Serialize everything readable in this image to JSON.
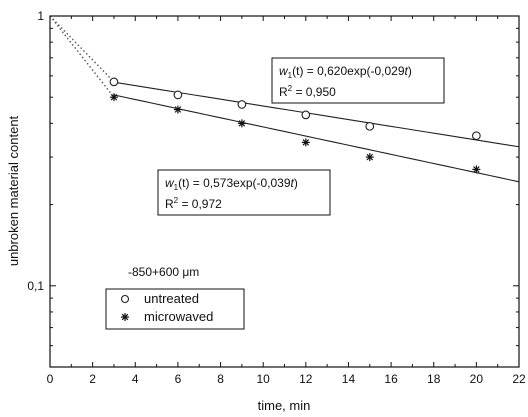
{
  "chart_data": {
    "type": "scatter",
    "xlabel": "time, min",
    "ylabel": "unbroken material content",
    "xlim": [
      0,
      22
    ],
    "ylim": [
      0.05,
      1
    ],
    "yscale": "log",
    "x_ticks": [
      0,
      2,
      4,
      6,
      8,
      10,
      12,
      14,
      16,
      18,
      20,
      22
    ],
    "y_tick_labels": [
      "1",
      "0,1"
    ],
    "grid": false,
    "legend_position": "bottom-left",
    "size_label": "-850+600 μm",
    "series": [
      {
        "name": "untreated",
        "marker": "circle",
        "x": [
          3,
          6,
          9,
          12,
          15,
          20
        ],
        "y": [
          0.57,
          0.51,
          0.47,
          0.43,
          0.39,
          0.36
        ],
        "fit": {
          "a": 0.62,
          "b": -0.029
        },
        "equation_w": "w",
        "equation_sub": "1",
        "equation_mid": "(t) = 0,620exp(-0,029",
        "equation_t": "t",
        "equation_end": ")",
        "r2_prefix": "R",
        "r2_sup": "2",
        "r2_value": " = 0,950"
      },
      {
        "name": "microwaved",
        "marker": "star",
        "x": [
          3,
          6,
          9,
          12,
          15,
          20
        ],
        "y": [
          0.5,
          0.45,
          0.4,
          0.34,
          0.3,
          0.27
        ],
        "fit": {
          "a": 0.573,
          "b": -0.039
        },
        "equation_w": "w",
        "equation_sub": "1",
        "equation_mid": "(t) = 0,573exp(-0,039",
        "equation_t": "t",
        "equation_end": ")",
        "r2_prefix": "R",
        "r2_sup": "2",
        "r2_value": " = 0,972"
      }
    ]
  }
}
